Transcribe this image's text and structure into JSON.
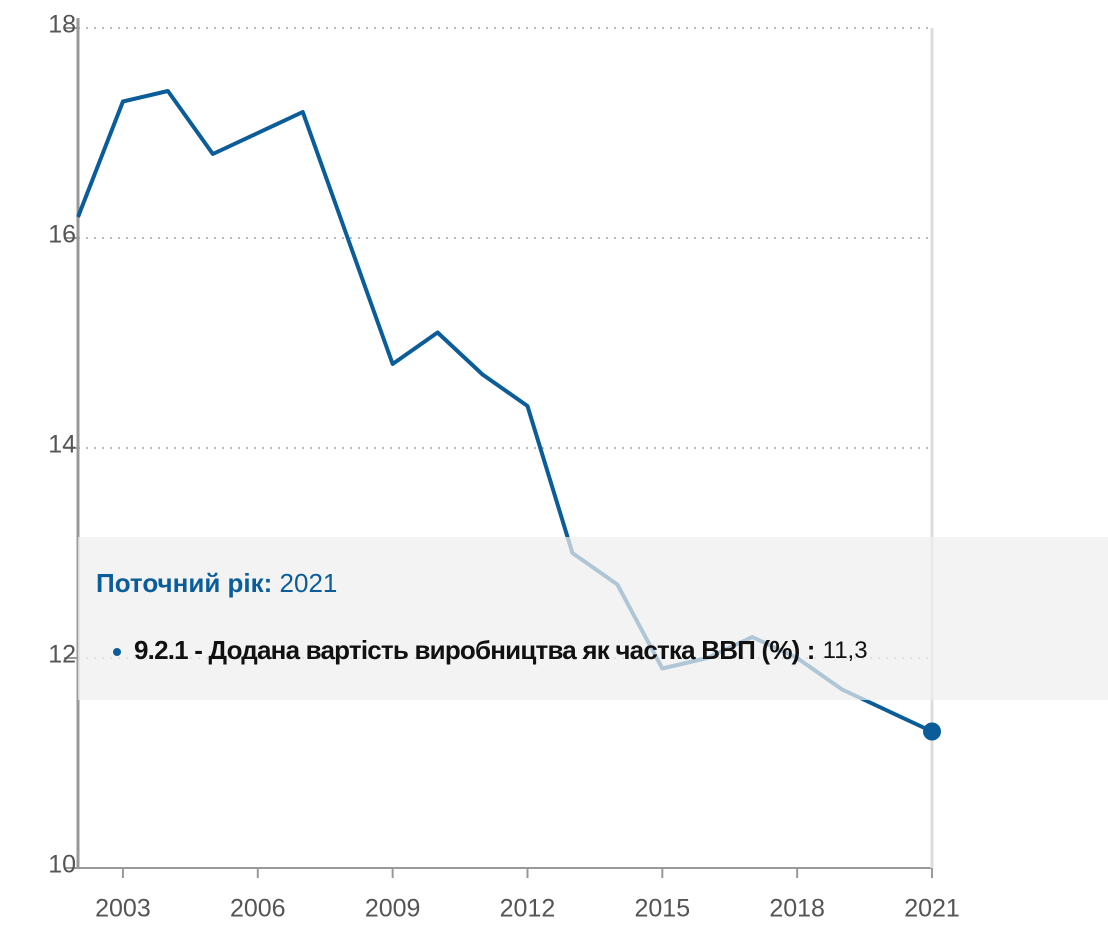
{
  "chart_data": {
    "type": "line",
    "x": [
      2002,
      2003,
      2004,
      2005,
      2006,
      2007,
      2008,
      2009,
      2010,
      2011,
      2012,
      2013,
      2014,
      2015,
      2016,
      2017,
      2018,
      2019,
      2020,
      2021
    ],
    "series": [
      {
        "name": "9.2.1 - Додана вартість виробництва як частка ВВП (%)",
        "color": "#0b5d99",
        "values": [
          16.2,
          17.3,
          17.4,
          16.8,
          17.0,
          17.2,
          16.0,
          14.8,
          15.1,
          14.7,
          14.4,
          13.0,
          12.7,
          11.9,
          12.0,
          12.2,
          12.0,
          11.7,
          11.5,
          11.3
        ]
      }
    ],
    "xlim": [
      2002,
      2021
    ],
    "xticks": [
      2003,
      2006,
      2009,
      2012,
      2015,
      2018,
      2021
    ],
    "ylim": [
      10,
      18
    ],
    "yticks": [
      10,
      12,
      14,
      16,
      18
    ],
    "grid": true,
    "tooltip": {
      "label": "Поточний рік:",
      "year": "2021",
      "value_label": "11,3"
    }
  }
}
